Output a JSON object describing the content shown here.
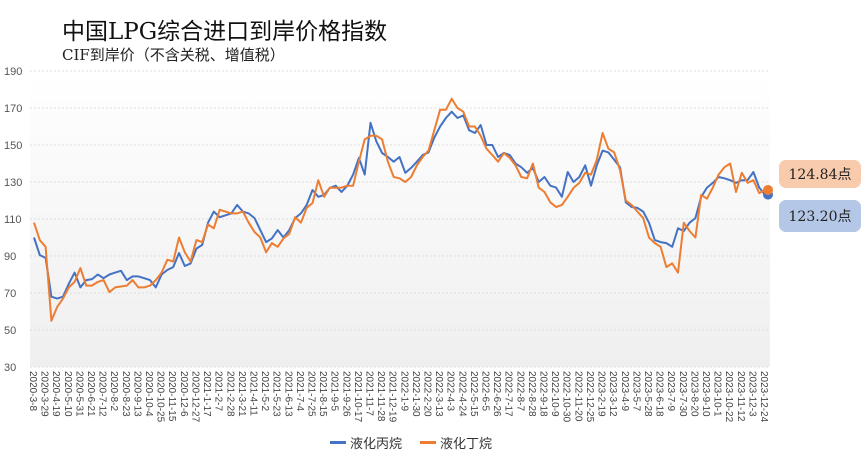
{
  "chart_data": {
    "type": "line",
    "title": "中国LPG综合进口到岸价格指数",
    "subtitle": "CIF到岸价（不含关税、增值税）",
    "ylim": [
      30,
      190
    ],
    "yticks": [
      30,
      50,
      70,
      90,
      110,
      130,
      150,
      170,
      190
    ],
    "grid": true,
    "legend_position": "bottom",
    "xtick_labels": [
      "2020-3-8",
      "2020-3-29",
      "2020-4-19",
      "2020-5-10",
      "2020-5-31",
      "2020-6-21",
      "2020-7-12",
      "2020-8-2",
      "2020-8-23",
      "2020-9-13",
      "2020-10-4",
      "2020-10-25",
      "2020-11-15",
      "2020-12-6",
      "2020-12-27",
      "2021-1-17",
      "2021-2-7",
      "2021-2-28",
      "2021-3-21",
      "2021-4-11",
      "2021-5-2",
      "2021-5-23",
      "2021-6-13",
      "2021-7-4",
      "2021-7-25",
      "2021-8-15",
      "2021-9-5",
      "2021-9-26",
      "2021-10-17",
      "2021-11-7",
      "2021-11-28",
      "2021-12-19",
      "2022-1-9",
      "2022-1-30",
      "2022-2-20",
      "2022-3-13",
      "2022-4-3",
      "2022-4-24",
      "2022-5-15",
      "2022-6-5",
      "2022-6-26",
      "2022-7-17",
      "2022-8-7",
      "2022-8-28",
      "2022-9-18",
      "2022-10-9",
      "2022-10-30",
      "2022-11-20",
      "2022-12-25",
      "2023-2-19",
      "2023-3-12",
      "2023-4-9",
      "2023-5-7",
      "2023-5-28",
      "2023-6-18",
      "2023-7-9",
      "2023-7-30",
      "2023-8-20",
      "2023-9-10",
      "2023-10-1",
      "2023-10-22",
      "2023-11-12",
      "2023-12-3",
      "2023-12-24"
    ],
    "points_per_tick": 2,
    "series": [
      {
        "name": "液化丙烷",
        "color": "#4472C4",
        "last_label": "123.20点",
        "values": [
          100,
          90.5,
          89,
          68,
          67,
          68,
          75,
          81,
          73,
          77,
          77.5,
          80,
          78,
          80,
          81,
          82,
          77,
          79,
          79,
          78,
          77,
          73,
          80,
          82.5,
          84,
          91.6,
          84.6,
          86,
          94,
          96,
          108,
          114,
          111,
          112,
          113,
          117.6,
          114,
          113,
          110.5,
          104,
          97.5,
          99.5,
          104,
          100,
          104,
          110.5,
          113,
          117.6,
          125.7,
          122,
          123,
          126.8,
          128,
          124.6,
          128,
          134,
          143,
          134,
          162,
          152,
          145.7,
          143.5,
          141,
          143.5,
          135,
          137.6,
          141,
          144.6,
          146,
          154,
          160,
          164.6,
          168,
          164.6,
          166,
          158,
          156.5,
          160.8,
          150,
          150,
          143.5,
          145.7,
          144.6,
          140,
          138,
          135,
          137.6,
          130,
          132.7,
          128,
          127,
          122,
          135.4,
          130,
          132.7,
          139,
          128,
          139,
          147,
          146,
          142,
          138,
          119,
          116.5,
          116,
          114,
          108,
          98.6,
          97.5,
          97,
          95,
          105,
          103.5,
          108,
          110.5,
          122,
          127,
          129.5,
          132.7,
          132,
          131,
          129.5,
          131,
          131,
          135.4,
          127,
          123.2
        ]
      },
      {
        "name": "液化丁烷",
        "color": "#ED7D31",
        "last_label": "124.84点",
        "values": [
          108,
          98.6,
          95,
          55,
          62.5,
          67,
          73,
          76,
          83.5,
          74,
          74,
          76,
          77,
          70.5,
          73,
          73.5,
          74,
          77,
          73,
          73,
          74,
          77,
          81,
          88,
          87,
          100,
          92,
          87,
          98.6,
          97.5,
          107,
          105,
          115,
          114,
          113,
          113,
          114,
          108,
          103,
          100,
          92,
          97,
          95,
          99.5,
          102,
          111,
          108,
          116,
          118.6,
          131,
          122,
          127,
          126.8,
          127,
          128,
          128,
          141,
          153,
          155,
          155,
          153,
          141,
          132.7,
          132,
          130,
          132.7,
          139,
          143.5,
          147,
          158,
          169,
          169,
          175,
          170,
          168,
          160,
          160,
          155,
          148,
          144.6,
          141,
          145.7,
          143,
          139,
          132.7,
          132,
          140,
          127,
          124.6,
          119,
          116.5,
          117.6,
          122,
          126.8,
          129.5,
          135,
          134,
          142,
          156.5,
          148,
          146,
          136.5,
          120,
          117.6,
          114,
          110.5,
          100,
          97,
          95,
          84,
          86,
          81,
          108,
          103.5,
          100,
          123,
          121,
          127,
          134,
          138,
          140,
          124.6,
          135,
          129.5,
          131,
          124,
          125.7,
          124.84
        ]
      }
    ]
  }
}
